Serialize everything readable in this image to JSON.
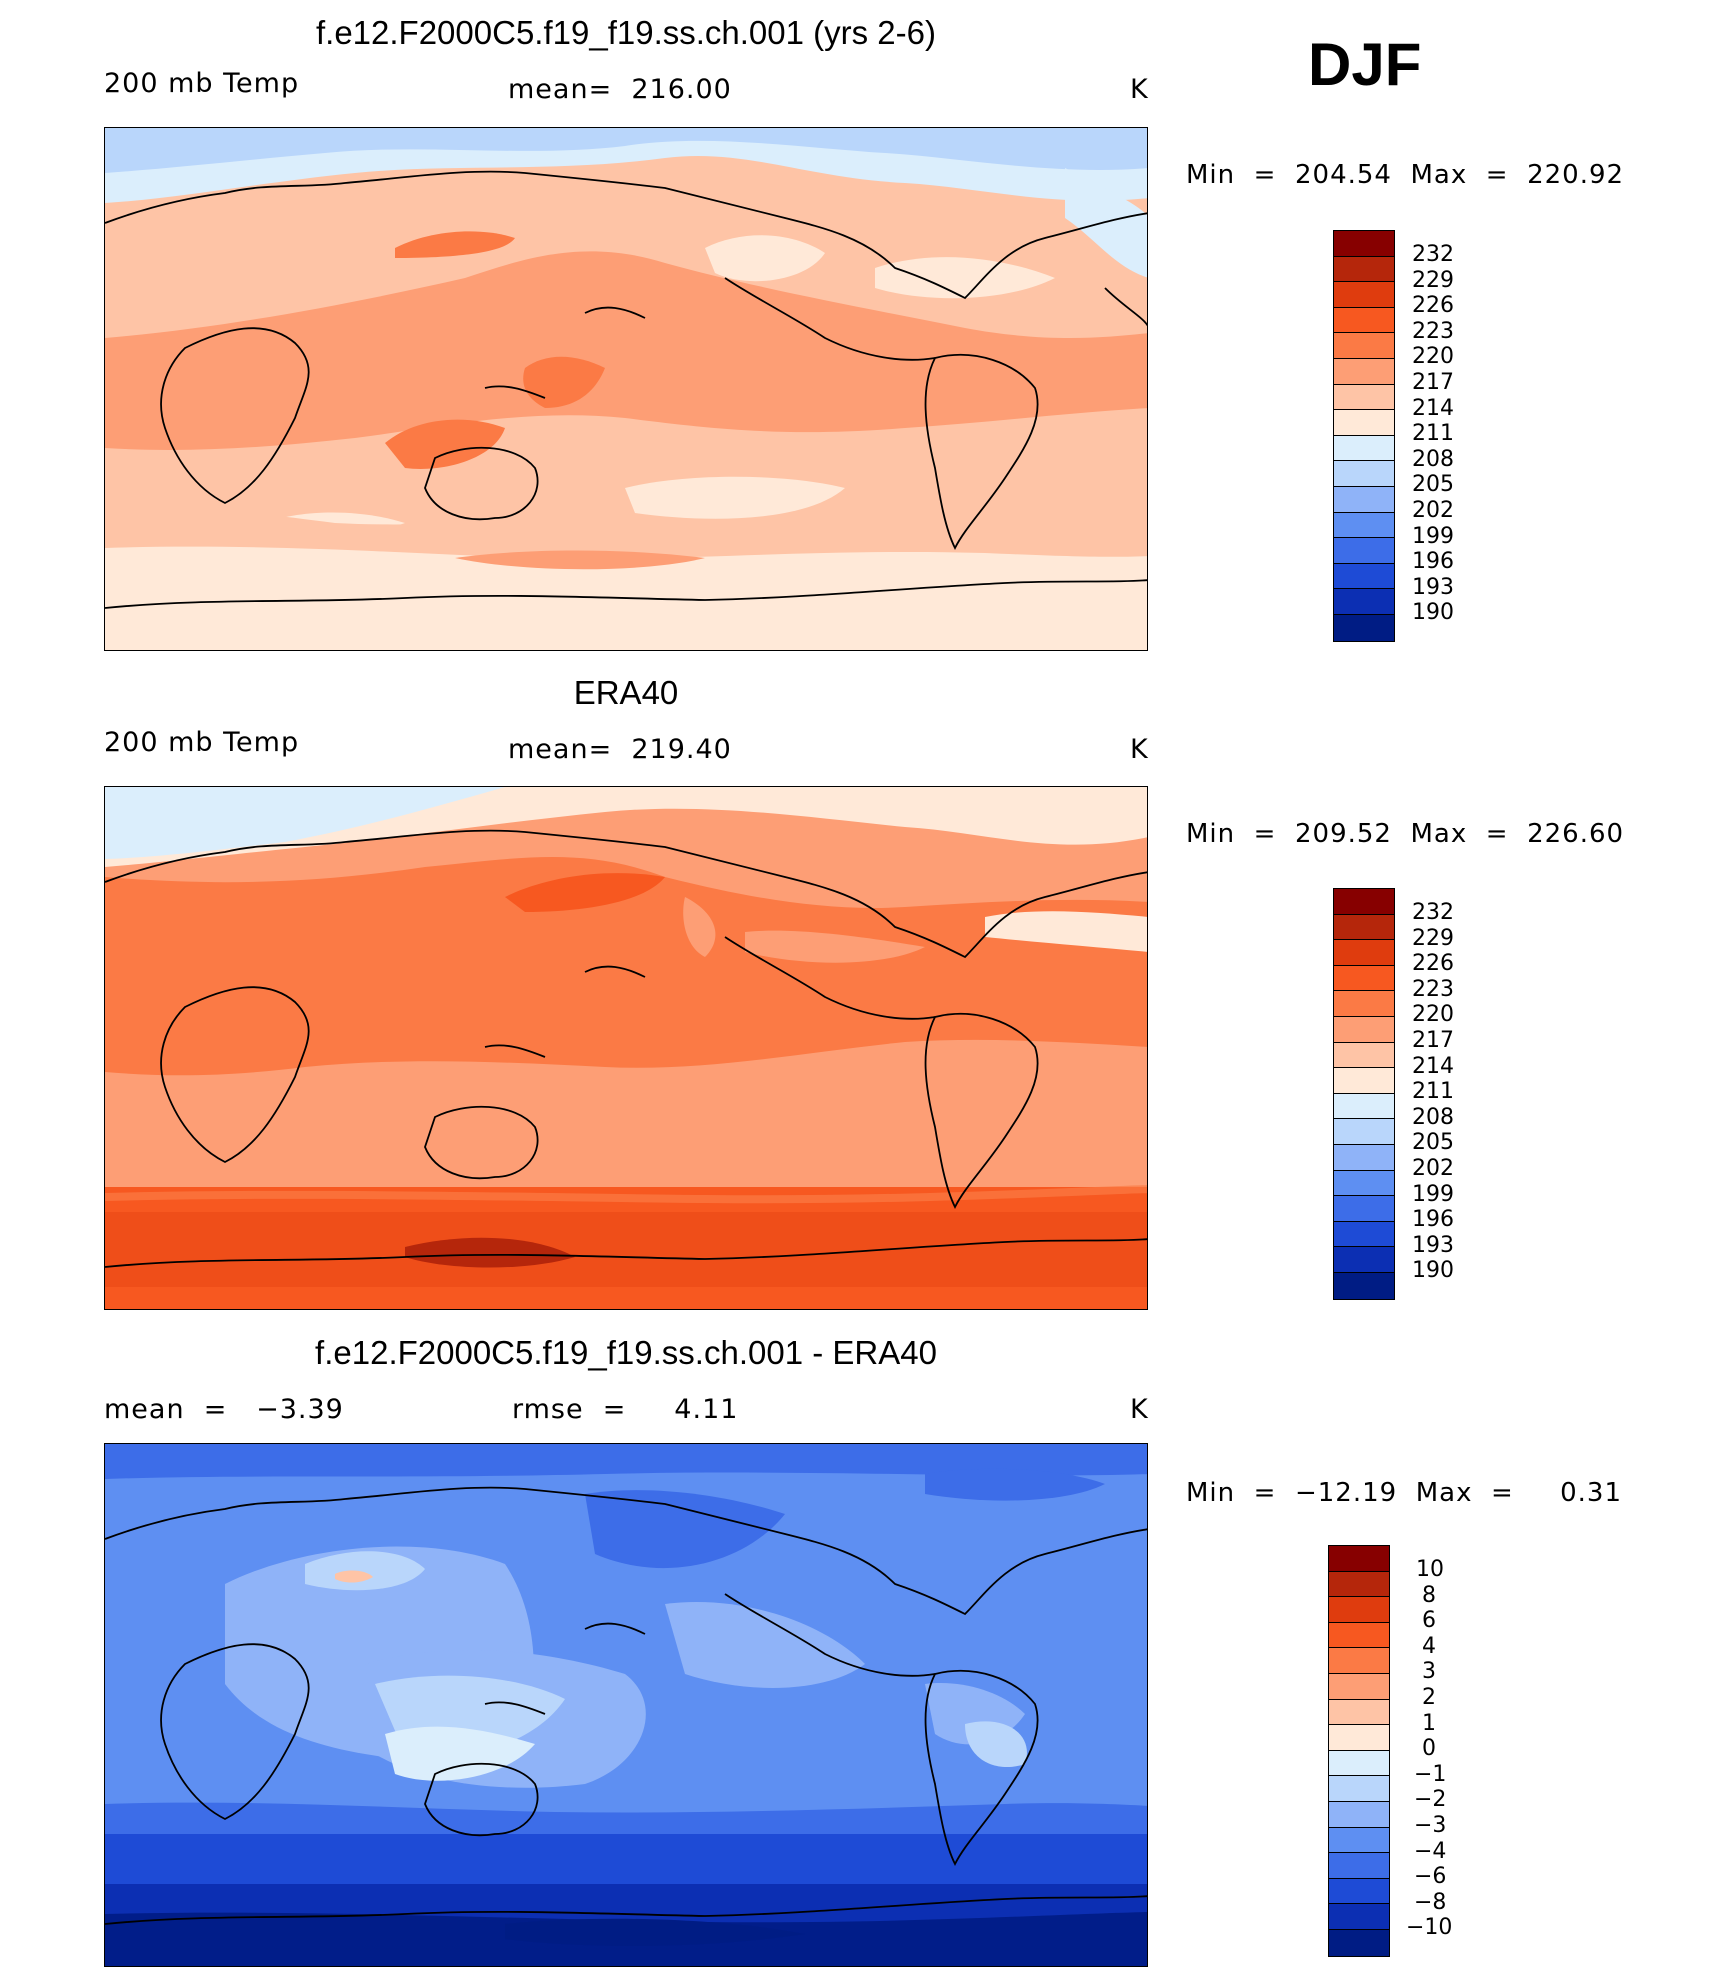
{
  "season": "DJF",
  "colors": {
    "warm_scale": [
      "#870000",
      "#b5260b",
      "#df3c0e",
      "#f75820",
      "#fb7a45",
      "#fd9e75",
      "#fec4a6",
      "#ffe9d8",
      "#dbeefc",
      "#b9d6fb",
      "#8fb3f8",
      "#5e8ff2",
      "#3d6de8",
      "#1e4bd6",
      "#0c2fb3",
      "#001c84"
    ],
    "diff_scale": [
      "#870000",
      "#b5260b",
      "#df3c0e",
      "#f75820",
      "#fb7a45",
      "#fd9e75",
      "#fec4a6",
      "#ffe9d8",
      "#dbeefc",
      "#b9d6fb",
      "#8fb3f8",
      "#5e8ff2",
      "#3d6de8",
      "#1e4bd6",
      "#0c2fb3",
      "#001c84"
    ]
  },
  "chart_data": [
    {
      "type": "heatmap",
      "title": "f.e12.F2000C5.f19_f19.ss.ch.001 (yrs 2-6)",
      "variable": "200 mb Temp",
      "stat_label": "mean=  216.00",
      "units": "K",
      "min_max": "Min  =  204.54  Max  =  220.92",
      "levels": [
        "232",
        "229",
        "226",
        "223",
        "220",
        "217",
        "214",
        "211",
        "208",
        "205",
        "202",
        "199",
        "196",
        "193",
        "190"
      ],
      "mean": 216.0,
      "min": 204.54,
      "max": 220.92
    },
    {
      "type": "heatmap",
      "title": "ERA40",
      "variable": "200 mb Temp",
      "stat_label": "mean=  219.40",
      "units": "K",
      "min_max": "Min  =  209.52  Max  =  226.60",
      "levels": [
        "232",
        "229",
        "226",
        "223",
        "220",
        "217",
        "214",
        "211",
        "208",
        "205",
        "202",
        "199",
        "196",
        "193",
        "190"
      ],
      "mean": 219.4,
      "min": 209.52,
      "max": 226.6
    },
    {
      "type": "heatmap",
      "title": "f.e12.F2000C5.f19_f19.ss.ch.001 - ERA40",
      "variable": "mean  =   −3.39",
      "stat_label": "rmse  =     4.11",
      "units": "K",
      "min_max": "Min  =  −12.19  Max  =     0.31",
      "levels": [
        "10",
        "8",
        "6",
        "4",
        "3",
        "2",
        "1",
        "0",
        "−1",
        "−2",
        "−3",
        "−4",
        "−6",
        "−8",
        "−10"
      ],
      "mean": -3.39,
      "rmse": 4.11,
      "min": -12.19,
      "max": 0.31
    }
  ]
}
